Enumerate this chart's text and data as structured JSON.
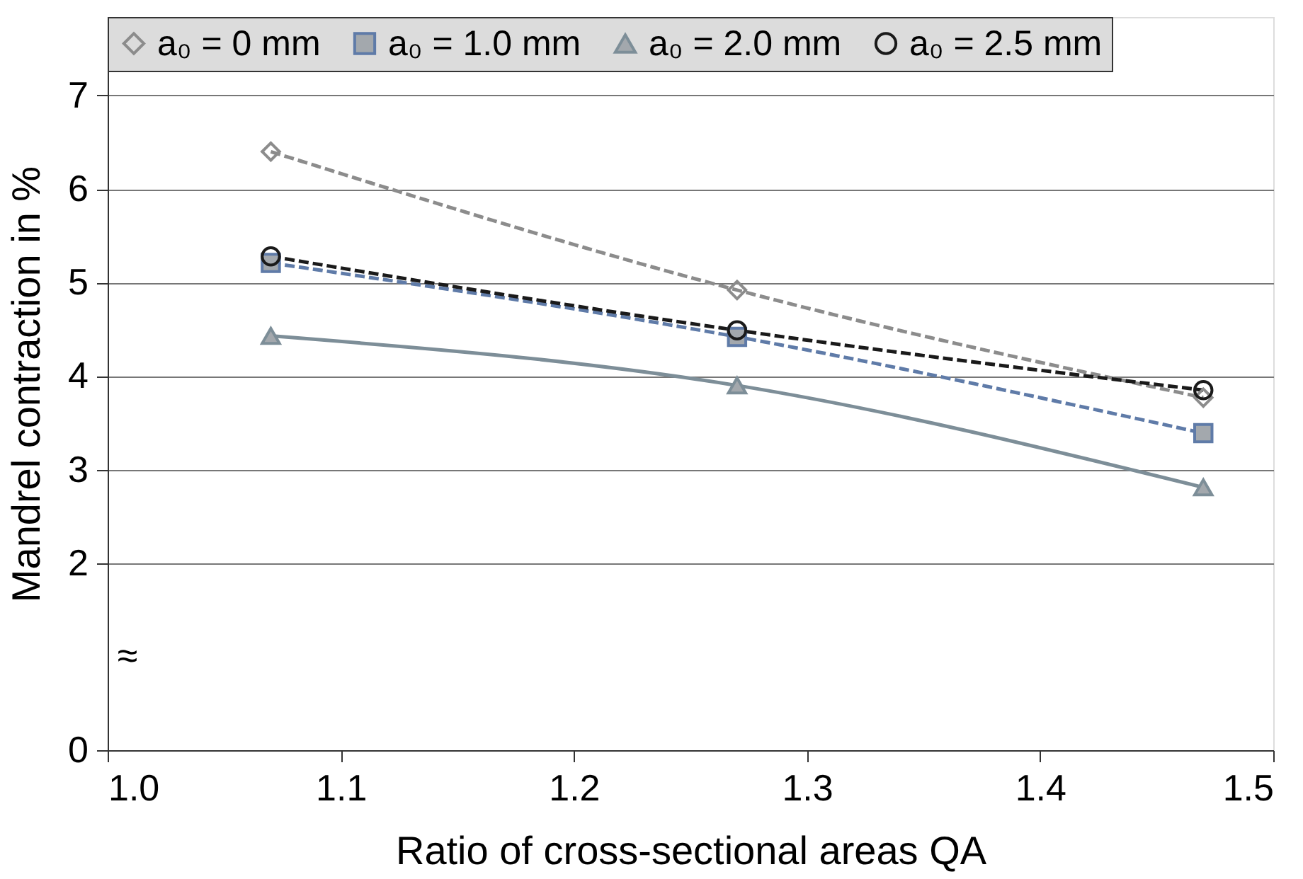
{
  "chart_data": {
    "type": "line",
    "xlabel": "Ratio of cross-sectional areas QA",
    "ylabel": "Mandrel contraction in %",
    "x": [
      1.07,
      1.27,
      1.47
    ],
    "series": [
      {
        "name": "a₀ = 0 mm",
        "color": "#8c8c8c",
        "values": [
          6.4,
          4.92,
          3.77
        ],
        "marker": "diamond",
        "line_style": "dashed"
      },
      {
        "name": "a₀ = 1.0 mm",
        "color": "#5f7ba8",
        "values": [
          5.21,
          4.42,
          3.39
        ],
        "marker": "square",
        "line_style": "dashed"
      },
      {
        "name": "a₀ = 2.0 mm",
        "color": "#7d8e98",
        "values": [
          4.43,
          3.9,
          2.81
        ],
        "marker": "triangle",
        "line_style": "solid"
      },
      {
        "name": "a₀ = 2.5 mm",
        "color": "#1a1a1a",
        "values": [
          5.28,
          4.49,
          3.85
        ],
        "marker": "circle",
        "line_style": "dashed"
      }
    ],
    "xlim": [
      1.0,
      1.5
    ],
    "xticks": [
      {
        "value": 1.0,
        "label": "1.0"
      },
      1.1,
      1.2,
      1.3,
      1.4,
      1.5
    ],
    "ylim": [
      0,
      7.84
    ],
    "yticks": [
      0,
      2,
      3,
      4,
      5,
      6,
      7
    ],
    "grid": "y",
    "legend": "top",
    "annotations": [
      "≈"
    ]
  }
}
